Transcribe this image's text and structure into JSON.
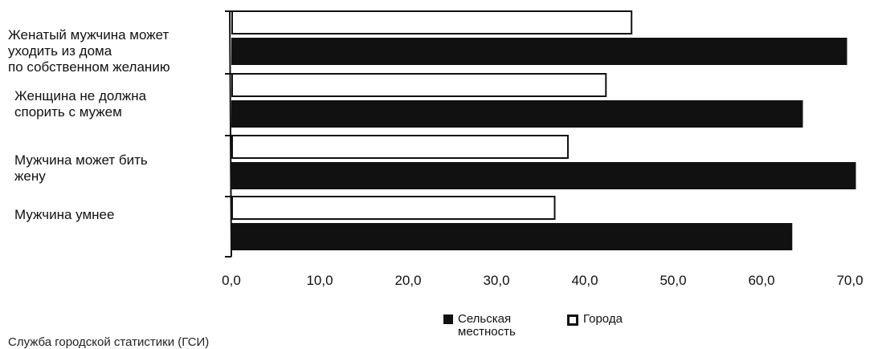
{
  "chart_data": {
    "type": "bar",
    "orientation": "horizontal",
    "categories": [
      "Женатый мужчина может\nуходить из дома\nпо собственном   желанию",
      "Женщина не должна\nспорить с мужем",
      "Мужчина может бить\nжену",
      "Мужчина умнее"
    ],
    "series": [
      {
        "name": "Города",
        "values": [
          45.2,
          42.3,
          38.0,
          36.5
        ],
        "color": "#ffffff"
      },
      {
        "name": "Сельская\nместность",
        "values": [
          69.5,
          64.5,
          70.5,
          63.3
        ],
        "color": "#111111"
      }
    ],
    "xlim": [
      0,
      70
    ],
    "xticks": [
      "0,0",
      "10,0",
      "20,0",
      "30,0",
      "40,0",
      "50,0",
      "60,0",
      "70,0"
    ],
    "legend_position": "bottom-center",
    "grid": false
  },
  "legend": {
    "rural_label": "Сельская\nместность",
    "urban_label": "Города"
  },
  "source_note": "Служба городской статистики (ГСИ)"
}
